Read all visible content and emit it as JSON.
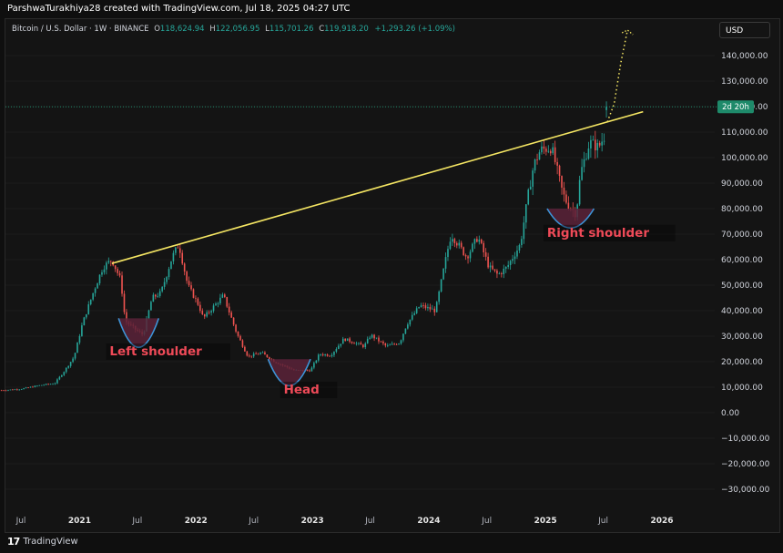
{
  "header": {
    "credit": "ParshwaTurakhiya28 created with TradingView.com, Jul 18, 2025 04:27 UTC"
  },
  "legend": {
    "symbol": "Bitcoin / U.S. Dollar · 1W · BINANCE",
    "o_label": "O",
    "o_value": "118,624.94",
    "h_label": "H",
    "h_value": "122,056.95",
    "l_label": "L",
    "l_value": "115,701.26",
    "c_label": "C",
    "c_value": "119,918.20",
    "change": "+1,293.26 (+1.09%)"
  },
  "currency_button": "USD",
  "price_badge": "2d 20h",
  "footer": {
    "brand": "TradingView"
  },
  "colors": {
    "up": "#26a69a",
    "down": "#ef5350",
    "trendline": "#f5e663",
    "cup": "#3d94d8",
    "cup_fill": "#5b2238",
    "annotation_text": "#ef4a58",
    "badge": "#1e8a6a"
  },
  "chart_data": {
    "type": "candlestick",
    "title": "",
    "interval": "1W",
    "y_ticks": [
      140000,
      130000,
      120000,
      110000,
      100000,
      90000,
      80000,
      70000,
      60000,
      50000,
      40000,
      30000,
      20000,
      10000,
      0,
      -10000,
      -20000,
      -30000
    ],
    "y_tick_labels": [
      "140,000.00",
      "130,000.00",
      "120,000.00",
      "110,000.00",
      "100,000.00",
      "90,000.00",
      "80,000.00",
      "70,000.00",
      "60,000.00",
      "50,000.00",
      "40,000.00",
      "30,000.00",
      "20,000.00",
      "10,000.00",
      "0.00",
      "−10,000.00",
      "−20,000.00",
      "−30,000.00"
    ],
    "ylim": [
      -34000,
      150000
    ],
    "x_ticks": [
      {
        "date": "2020-07-01",
        "label": "Jul"
      },
      {
        "date": "2021-01-01",
        "label": "2021"
      },
      {
        "date": "2021-07-01",
        "label": "Jul"
      },
      {
        "date": "2022-01-01",
        "label": "2022"
      },
      {
        "date": "2022-07-01",
        "label": "Jul"
      },
      {
        "date": "2023-01-01",
        "label": "2023"
      },
      {
        "date": "2023-07-01",
        "label": "Jul"
      },
      {
        "date": "2024-01-01",
        "label": "2024"
      },
      {
        "date": "2024-07-01",
        "label": "Jul"
      },
      {
        "date": "2025-01-01",
        "label": "2025"
      },
      {
        "date": "2025-07-01",
        "label": "Jul"
      },
      {
        "date": "2026-01-01",
        "label": "2026"
      }
    ],
    "price_anchors": [
      [
        "2020-05-01",
        8800
      ],
      [
        "2020-07-01",
        9300
      ],
      [
        "2020-09-01",
        10800
      ],
      [
        "2020-10-15",
        11500
      ],
      [
        "2020-11-15",
        16500
      ],
      [
        "2020-12-15",
        22000
      ],
      [
        "2021-01-10",
        35000
      ],
      [
        "2021-02-15",
        48000
      ],
      [
        "2021-03-15",
        57000
      ],
      [
        "2021-04-12",
        60000
      ],
      [
        "2021-05-10",
        52000
      ],
      [
        "2021-05-24",
        36000
      ],
      [
        "2021-06-21",
        33000
      ],
      [
        "2021-07-19",
        30500
      ],
      [
        "2021-08-16",
        45000
      ],
      [
        "2021-09-13",
        47000
      ],
      [
        "2021-10-18",
        61000
      ],
      [
        "2021-11-08",
        66000
      ],
      [
        "2021-12-06",
        50000
      ],
      [
        "2022-01-10",
        42000
      ],
      [
        "2022-01-24",
        37000
      ],
      [
        "2022-03-28",
        46000
      ],
      [
        "2022-05-09",
        31000
      ],
      [
        "2022-06-13",
        22000
      ],
      [
        "2022-07-25",
        23500
      ],
      [
        "2022-09-05",
        20000
      ],
      [
        "2022-11-07",
        16500
      ],
      [
        "2022-12-26",
        16600
      ],
      [
        "2023-01-23",
        23000
      ],
      [
        "2023-02-27",
        22500
      ],
      [
        "2023-04-10",
        29000
      ],
      [
        "2023-06-12",
        26000
      ],
      [
        "2023-07-03",
        30500
      ],
      [
        "2023-08-21",
        26000
      ],
      [
        "2023-10-02",
        27500
      ],
      [
        "2023-10-23",
        34500
      ],
      [
        "2023-12-04",
        42000
      ],
      [
        "2024-01-22",
        40000
      ],
      [
        "2024-02-26",
        62000
      ],
      [
        "2024-03-11",
        70000
      ],
      [
        "2024-04-29",
        61000
      ],
      [
        "2024-06-03",
        69000
      ],
      [
        "2024-07-08",
        57000
      ],
      [
        "2024-08-05",
        54000
      ],
      [
        "2024-09-02",
        57000
      ],
      [
        "2024-10-14",
        66000
      ],
      [
        "2024-11-11",
        88000
      ],
      [
        "2024-11-25",
        97000
      ],
      [
        "2024-12-16",
        103000
      ],
      [
        "2025-01-20",
        104000
      ],
      [
        "2025-02-24",
        86000
      ],
      [
        "2025-03-10",
        82000
      ],
      [
        "2025-04-07",
        78000
      ],
      [
        "2025-04-21",
        94000
      ],
      [
        "2025-05-19",
        106000
      ],
      [
        "2025-06-16",
        104000
      ],
      [
        "2025-07-07",
        109000
      ],
      [
        "2025-07-14",
        119918
      ]
    ],
    "last_candle": {
      "date": "2025-07-14",
      "open": 118624.94,
      "high": 122056.95,
      "low": 115701.26,
      "close": 119918.2
    },
    "current_price_line": 119918.2,
    "trendline": {
      "from": {
        "date": "2021-04-12",
        "value": 58500
      },
      "to": {
        "date": "2025-11-03",
        "value": 118000
      }
    },
    "projection": [
      {
        "date": "2025-07-14",
        "value": 114000
      },
      {
        "date": "2025-08-04",
        "value": 121000
      },
      {
        "date": "2025-08-25",
        "value": 137000
      },
      {
        "date": "2025-09-15",
        "value": 150000
      }
    ],
    "annotations": [
      {
        "text": "Left shoulder",
        "cup": {
          "from": "2021-05-03",
          "to": "2021-09-06",
          "top": 37000,
          "bottom": 25000
        },
        "label_at": {
          "date": "2021-04-05",
          "value": 22500
        }
      },
      {
        "text": "Head",
        "cup": {
          "from": "2022-08-15",
          "to": "2022-12-26",
          "top": 21000,
          "bottom": 10000
        },
        "label_at": {
          "date": "2022-10-03",
          "value": 7500
        }
      },
      {
        "text": "Right shoulder",
        "cup": {
          "from": "2025-01-06",
          "to": "2025-06-02",
          "top": 80000,
          "bottom": 72000
        },
        "label_at": {
          "date": "2025-01-06",
          "value": 69000
        }
      }
    ]
  }
}
